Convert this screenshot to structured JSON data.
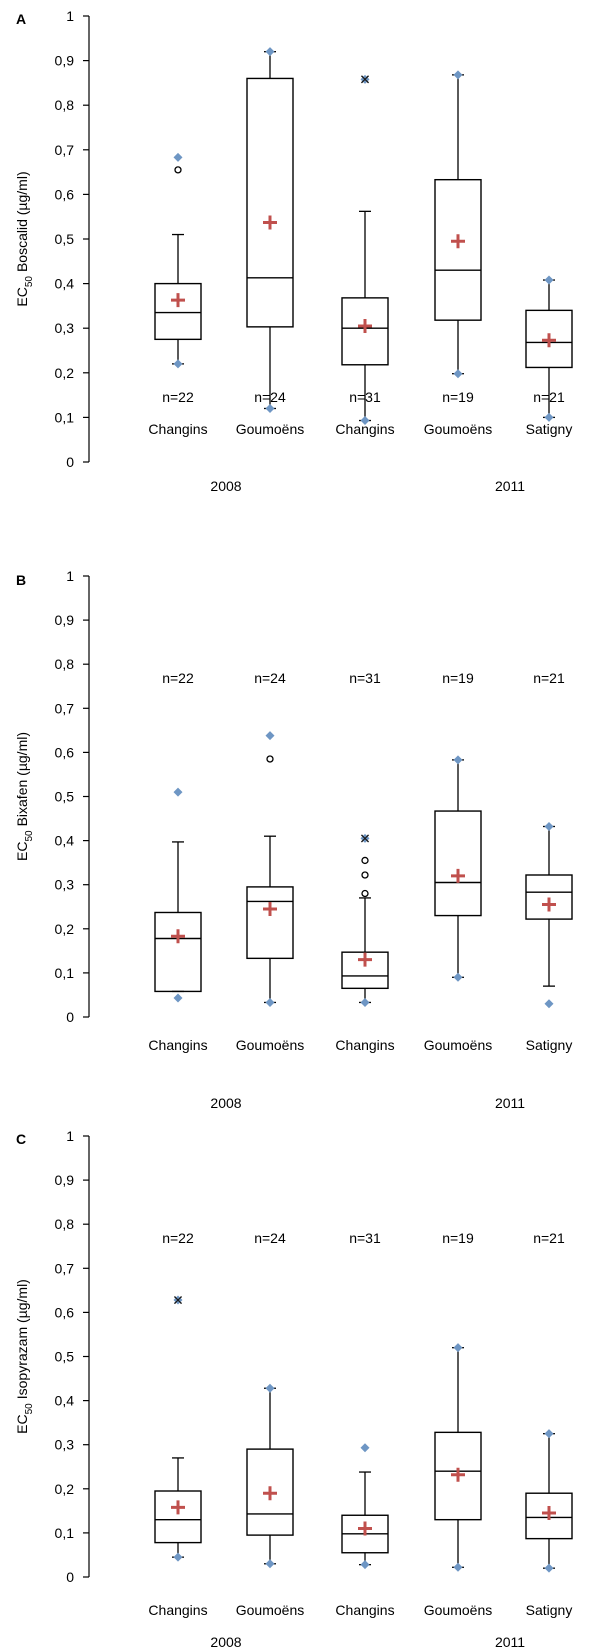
{
  "chart_data": [
    {
      "type": "box",
      "panel": "A",
      "ylabel": {
        "main": "EC",
        "sub": "50",
        "rest": "Boscalid (µg/ml)"
      },
      "ylim": [
        0,
        1
      ],
      "yticks": [
        "0",
        "0,1",
        "0,2",
        "0,3",
        "0,4",
        "0,5",
        "0,6",
        "0,7",
        "0,8",
        "0,9",
        "1"
      ],
      "years": [
        "2008",
        "2011"
      ],
      "categories": [
        "Changins",
        "Goumoëns",
        "Changins",
        "Goumoëns",
        "Satigny"
      ],
      "boxes": [
        {
          "n": "n=22",
          "whisker_low": 0.22,
          "q1": 0.275,
          "median": 0.335,
          "q3": 0.4,
          "whisker_high": 0.51,
          "mean": 0.363,
          "min": 0.22,
          "max": 0.683,
          "outliers": [
            0.655
          ]
        },
        {
          "n": "n=24",
          "whisker_low": 0.12,
          "q1": 0.303,
          "median": 0.413,
          "q3": 0.86,
          "whisker_high": 0.92,
          "mean": 0.537,
          "min": 0.12,
          "max": 0.92,
          "outliers": []
        },
        {
          "n": "n=31",
          "whisker_low": 0.093,
          "q1": 0.218,
          "median": 0.3,
          "q3": 0.368,
          "whisker_high": 0.562,
          "mean": 0.305,
          "min": 0.093,
          "max": 0.858,
          "outliers": [
            0.858
          ]
        },
        {
          "n": "n=19",
          "whisker_low": 0.198,
          "q1": 0.318,
          "median": 0.43,
          "q3": 0.633,
          "whisker_high": 0.868,
          "mean": 0.495,
          "min": 0.198,
          "max": 0.868,
          "outliers": []
        },
        {
          "n": "n=21",
          "whisker_low": 0.1,
          "q1": 0.212,
          "median": 0.268,
          "q3": 0.34,
          "whisker_high": 0.408,
          "mean": 0.273,
          "min": 0.1,
          "max": 0.408,
          "outliers": []
        }
      ]
    },
    {
      "type": "box",
      "panel": "B",
      "ylabel": {
        "main": "EC",
        "sub": "50",
        "rest": "Bixafen (µg/ml)"
      },
      "ylim": [
        0,
        1
      ],
      "yticks": [
        "0",
        "0,1",
        "0,2",
        "0,3",
        "0,4",
        "0,5",
        "0,6",
        "0,7",
        "0,8",
        "0,9",
        "1"
      ],
      "years": [
        "2008",
        "2011"
      ],
      "categories": [
        "Changins",
        "Goumoëns",
        "Changins",
        "Goumoëns",
        "Satigny"
      ],
      "boxes": [
        {
          "n": "n=22",
          "whisker_low": 0.058,
          "q1": 0.058,
          "median": 0.178,
          "q3": 0.237,
          "whisker_high": 0.397,
          "mean": 0.183,
          "min": 0.043,
          "max": 0.51,
          "outliers": []
        },
        {
          "n": "n=24",
          "whisker_low": 0.033,
          "q1": 0.133,
          "median": 0.262,
          "q3": 0.295,
          "whisker_high": 0.41,
          "mean": 0.245,
          "min": 0.033,
          "max": 0.638,
          "outliers": [
            0.585
          ]
        },
        {
          "n": "n=31",
          "whisker_low": 0.033,
          "q1": 0.065,
          "median": 0.093,
          "q3": 0.147,
          "whisker_high": 0.27,
          "mean": 0.13,
          "min": 0.033,
          "max": 0.405,
          "outliers": [
            0.405,
            0.355,
            0.322,
            0.28
          ]
        },
        {
          "n": "n=19",
          "whisker_low": 0.09,
          "q1": 0.23,
          "median": 0.305,
          "q3": 0.467,
          "whisker_high": 0.583,
          "mean": 0.32,
          "min": 0.09,
          "max": 0.583,
          "outliers": []
        },
        {
          "n": "n=21",
          "whisker_low": 0.07,
          "q1": 0.222,
          "median": 0.283,
          "q3": 0.322,
          "whisker_high": 0.432,
          "mean": 0.255,
          "min": 0.03,
          "max": 0.432,
          "outliers": []
        }
      ]
    },
    {
      "type": "box",
      "panel": "C",
      "ylabel": {
        "main": "EC",
        "sub": "50",
        "rest": "Isopyrazam (µg/ml)"
      },
      "ylim": [
        0,
        1
      ],
      "yticks": [
        "0",
        "0,1",
        "0,2",
        "0,3",
        "0,4",
        "0,5",
        "0,6",
        "0,7",
        "0,8",
        "0,9",
        "1"
      ],
      "years": [
        "2008",
        "2011"
      ],
      "categories": [
        "Changins",
        "Goumoëns",
        "Changins",
        "Goumoëns",
        "Satigny"
      ],
      "boxes": [
        {
          "n": "n=22",
          "whisker_low": 0.045,
          "q1": 0.078,
          "median": 0.13,
          "q3": 0.195,
          "whisker_high": 0.27,
          "mean": 0.158,
          "min": 0.045,
          "max": 0.628,
          "outliers": [
            0.628
          ]
        },
        {
          "n": "n=24",
          "whisker_low": 0.03,
          "q1": 0.095,
          "median": 0.143,
          "q3": 0.29,
          "whisker_high": 0.428,
          "mean": 0.19,
          "min": 0.03,
          "max": 0.428,
          "outliers": []
        },
        {
          "n": "n=31",
          "whisker_low": 0.028,
          "q1": 0.055,
          "median": 0.098,
          "q3": 0.14,
          "whisker_high": 0.238,
          "mean": 0.11,
          "min": 0.028,
          "max": 0.293,
          "outliers": []
        },
        {
          "n": "n=19",
          "whisker_low": 0.022,
          "q1": 0.13,
          "median": 0.24,
          "q3": 0.328,
          "whisker_high": 0.52,
          "mean": 0.232,
          "min": 0.022,
          "max": 0.52,
          "outliers": []
        },
        {
          "n": "n=21",
          "whisker_low": 0.02,
          "q1": 0.087,
          "median": 0.135,
          "q3": 0.19,
          "whisker_high": 0.325,
          "mean": 0.145,
          "min": 0.02,
          "max": 0.325,
          "outliers": []
        }
      ]
    }
  ],
  "colors": {
    "mean_marker": "#c0504d",
    "extreme_marker": "#6e96c4",
    "box_stroke": "#000000",
    "axis": "#000000",
    "background": "#ffffff"
  },
  "marker_names": {
    "mean": "plus-cross-icon",
    "extreme": "diamond-icon",
    "outlier": "open-circle-icon"
  }
}
